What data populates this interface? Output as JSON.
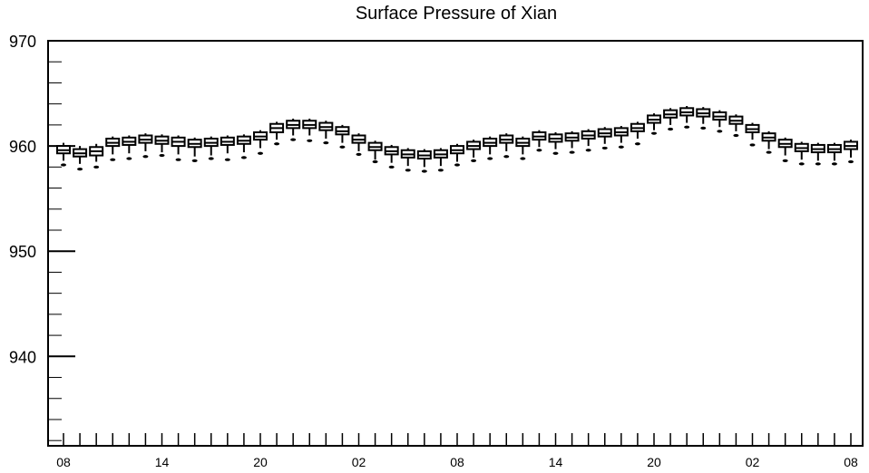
{
  "chart_data": {
    "type": "box",
    "title": "Surface Pressure of Xian",
    "xlabel": "",
    "ylabel": "",
    "ylim": [
      931.5,
      970
    ],
    "yticks": [
      940,
      950,
      960,
      970
    ],
    "x_tick_labels": [
      "08",
      "14",
      "20",
      "02",
      "08",
      "14",
      "20",
      "02",
      "08"
    ],
    "x_tick_hours": [
      0,
      6,
      12,
      18,
      24,
      30,
      36,
      42,
      48
    ],
    "grid": false,
    "hours": [
      0,
      1,
      2,
      3,
      4,
      5,
      6,
      7,
      8,
      9,
      10,
      11,
      12,
      13,
      14,
      15,
      16,
      17,
      18,
      19,
      20,
      21,
      22,
      23,
      24,
      25,
      26,
      27,
      28,
      29,
      30,
      31,
      32,
      33,
      34,
      35,
      36,
      37,
      38,
      39,
      40,
      41,
      42,
      43,
      44,
      45,
      46,
      47,
      48
    ],
    "medians": [
      959.6,
      959.3,
      959.5,
      960.3,
      960.4,
      960.6,
      960.5,
      960.4,
      960.2,
      960.3,
      960.4,
      960.5,
      960.9,
      961.7,
      962.0,
      962.0,
      961.8,
      961.4,
      960.6,
      959.9,
      959.5,
      959.2,
      959.1,
      959.2,
      959.6,
      960.0,
      960.3,
      960.6,
      960.3,
      960.9,
      960.7,
      960.8,
      961.0,
      961.2,
      961.3,
      961.7,
      962.5,
      963.0,
      963.2,
      963.1,
      962.8,
      962.4,
      961.6,
      960.8,
      960.2,
      959.8,
      959.7,
      959.7,
      960.0
    ],
    "q1": [
      959.3,
      959.0,
      959.1,
      960.0,
      960.1,
      960.3,
      960.2,
      960.0,
      959.9,
      960.0,
      960.1,
      960.2,
      960.6,
      961.3,
      961.7,
      961.7,
      961.5,
      961.1,
      960.3,
      959.6,
      959.2,
      958.9,
      958.8,
      958.9,
      959.3,
      959.7,
      960.0,
      960.3,
      960.0,
      960.6,
      960.4,
      960.5,
      960.7,
      960.9,
      961.0,
      961.4,
      962.2,
      962.7,
      962.9,
      962.8,
      962.5,
      962.1,
      961.3,
      960.5,
      959.9,
      959.5,
      959.4,
      959.4,
      959.7
    ],
    "q3": [
      960.0,
      959.7,
      959.9,
      960.7,
      960.8,
      961.0,
      960.9,
      960.8,
      960.6,
      960.7,
      960.8,
      960.9,
      961.3,
      962.1,
      962.4,
      962.4,
      962.2,
      961.8,
      961.0,
      960.3,
      959.9,
      959.6,
      959.5,
      959.6,
      960.0,
      960.4,
      960.7,
      961.0,
      960.7,
      961.3,
      961.1,
      961.2,
      961.4,
      961.6,
      961.7,
      962.1,
      962.9,
      963.4,
      963.6,
      963.5,
      963.2,
      962.8,
      962.0,
      961.2,
      960.6,
      960.2,
      960.1,
      960.1,
      960.4
    ],
    "whisker_low": [
      958.6,
      958.3,
      958.5,
      959.2,
      959.3,
      959.5,
      959.4,
      959.2,
      959.0,
      959.1,
      959.3,
      959.4,
      959.8,
      960.6,
      961.0,
      961.0,
      960.7,
      960.3,
      959.5,
      958.7,
      958.4,
      958.1,
      958.0,
      958.1,
      958.5,
      958.9,
      959.2,
      959.5,
      959.2,
      959.9,
      959.7,
      959.8,
      960.0,
      960.2,
      960.3,
      960.7,
      961.5,
      962.0,
      962.2,
      962.1,
      961.8,
      961.4,
      960.6,
      959.7,
      959.1,
      958.7,
      958.6,
      958.6,
      958.9
    ],
    "whisker_high": [
      960.3,
      960.0,
      960.2,
      960.9,
      961.0,
      961.2,
      961.1,
      961.0,
      960.8,
      960.9,
      961.0,
      961.1,
      961.5,
      962.3,
      962.6,
      962.6,
      962.4,
      962.0,
      961.2,
      960.5,
      960.1,
      959.8,
      959.7,
      959.8,
      960.2,
      960.6,
      960.9,
      961.2,
      960.9,
      961.5,
      961.3,
      961.4,
      961.6,
      961.8,
      961.9,
      962.3,
      963.1,
      963.6,
      963.8,
      963.7,
      963.4,
      963.0,
      962.2,
      961.4,
      960.8,
      960.4,
      960.3,
      960.3,
      960.6
    ],
    "outliers": [
      958.2,
      957.8,
      958.0,
      958.7,
      958.8,
      959.0,
      959.1,
      958.7,
      958.6,
      958.8,
      958.7,
      958.9,
      959.3,
      960.2,
      960.6,
      960.5,
      960.3,
      959.9,
      959.2,
      958.5,
      958.0,
      957.7,
      957.6,
      957.7,
      958.2,
      958.6,
      958.8,
      959.0,
      958.8,
      959.6,
      959.3,
      959.4,
      959.6,
      959.8,
      959.9,
      960.2,
      961.2,
      961.6,
      961.8,
      961.7,
      961.4,
      961.0,
      960.1,
      959.4,
      958.6,
      958.3,
      958.3,
      958.3,
      958.5
    ]
  }
}
